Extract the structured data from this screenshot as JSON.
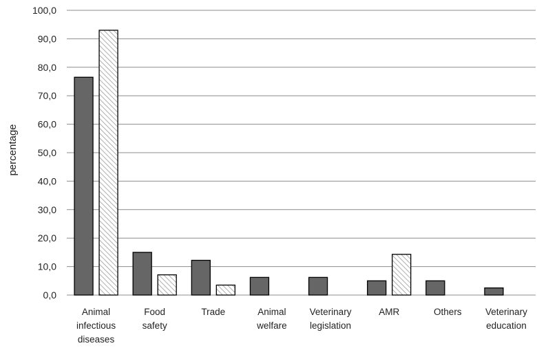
{
  "chart_data": {
    "type": "bar",
    "categories": [
      [
        "Animal",
        "infectious",
        "diseases"
      ],
      [
        "Food",
        "safety"
      ],
      [
        "Trade"
      ],
      [
        "Animal",
        "welfare"
      ],
      [
        "Veterinary",
        "legislation"
      ],
      [
        "AMR"
      ],
      [
        "Others"
      ],
      [
        "Veterinary",
        "education"
      ]
    ],
    "series": [
      {
        "fill": "solid",
        "color": "#666666",
        "values": [
          76.5,
          15.0,
          12.2,
          6.2,
          6.2,
          5.0,
          5.0,
          2.5
        ]
      },
      {
        "fill": "hatched",
        "color": "#ffffff",
        "values": [
          93.0,
          7.1,
          3.5,
          0,
          0,
          14.3,
          0,
          0
        ]
      }
    ],
    "ylabel": "percentage",
    "xlabel": "",
    "ylim": [
      0,
      100
    ],
    "yticks": [
      0,
      10,
      20,
      30,
      40,
      50,
      60,
      70,
      80,
      90,
      100
    ],
    "ytick_labels": [
      "0,0",
      "10,0",
      "20,0",
      "30,0",
      "40,0",
      "50,0",
      "60,0",
      "70,0",
      "80,0",
      "90,0",
      "100,0"
    ],
    "grid": true,
    "legend": "none"
  }
}
